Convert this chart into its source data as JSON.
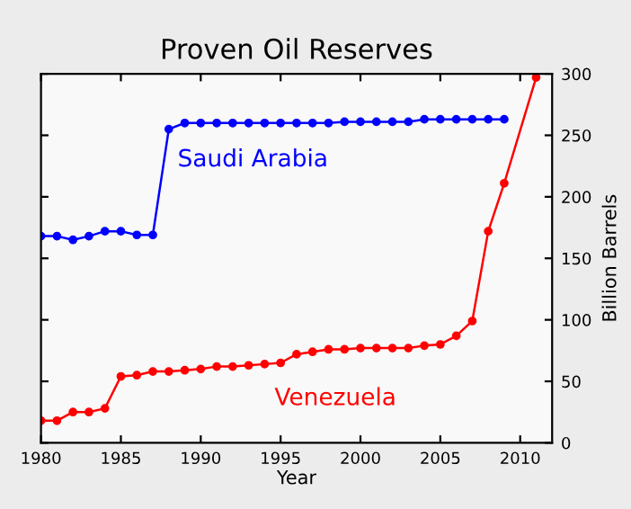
{
  "chart_data": {
    "type": "line",
    "title": "Proven Oil Reserves",
    "xlabel": "Year",
    "ylabel": "Billion Barrels",
    "marker": "circle",
    "line_style": "solid",
    "grid": false,
    "legend": false,
    "xlim": [
      1980,
      2012
    ],
    "xticks": [
      1980,
      1985,
      1990,
      1995,
      2000,
      2005,
      2010
    ],
    "ylim": [
      0,
      300
    ],
    "yticks": [
      0,
      50,
      100,
      150,
      200,
      250,
      300
    ],
    "series": [
      {
        "name": "Saudi Arabia",
        "color": "#0000ff",
        "x": [
          1980,
          1981,
          1982,
          1983,
          1984,
          1985,
          1986,
          1987,
          1988,
          1989,
          1990,
          1991,
          1992,
          1993,
          1994,
          1995,
          1996,
          1997,
          1998,
          1999,
          2000,
          2001,
          2002,
          2003,
          2004,
          2005,
          2006,
          2007,
          2008,
          2009
        ],
        "values": [
          168,
          168,
          165,
          168,
          172,
          172,
          169,
          169,
          255,
          260,
          260,
          260,
          260,
          260,
          260,
          260,
          260,
          260,
          260,
          261,
          261,
          261,
          261,
          261,
          263,
          263,
          263,
          263,
          263,
          263
        ]
      },
      {
        "name": "Venezuela",
        "color": "#ff0000",
        "x": [
          1980,
          1981,
          1982,
          1983,
          1984,
          1985,
          1986,
          1987,
          1988,
          1989,
          1990,
          1991,
          1992,
          1993,
          1994,
          1995,
          1996,
          1997,
          1998,
          1999,
          2000,
          2001,
          2002,
          2003,
          2004,
          2005,
          2006,
          2007,
          2008,
          2009,
          2011
        ],
        "values": [
          18,
          18,
          25,
          25,
          28,
          54,
          55,
          58,
          58,
          59,
          60,
          62,
          62,
          63,
          64,
          65,
          72,
          74,
          76,
          76,
          77,
          77,
          77,
          77,
          79,
          80,
          87,
          99,
          172,
          211,
          297
        ]
      }
    ]
  }
}
